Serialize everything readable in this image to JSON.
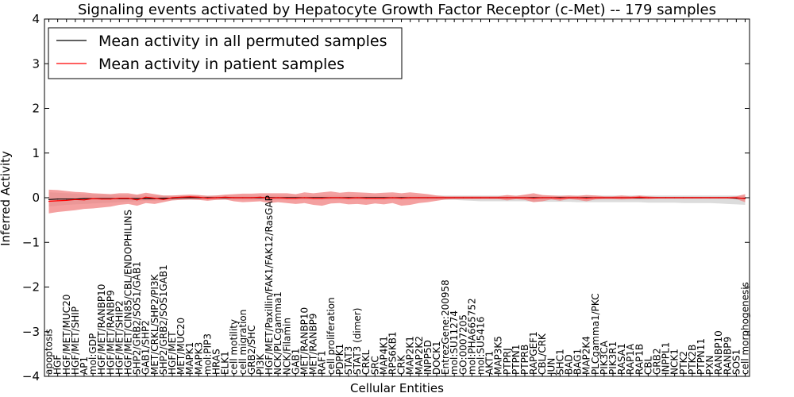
{
  "chart_data": {
    "type": "line",
    "title": "Signaling events activated by Hepatocyte Growth Factor Receptor (c-Met) -- 179 samples",
    "xlabel": "Cellular Entities",
    "ylabel": "Inferred Activity",
    "ylim": [
      -4,
      4
    ],
    "yticks": [
      -4,
      -3,
      -2,
      -1,
      0,
      1,
      2,
      3,
      4
    ],
    "ytick_labels": [
      "−4",
      "−3",
      "−2",
      "−1",
      "0",
      "1",
      "2",
      "3",
      "4"
    ],
    "legend_position": "top-left",
    "colors": {
      "permuted": "#000000",
      "patient": "#ff0000",
      "patient_band": "#f08080",
      "permuted_band": "#c0c0c0"
    },
    "categories": [
      "apoptosis",
      "HGF",
      "HGF/MET/MUC20",
      "HGF/MET/SHIP",
      "AP1",
      "mol:GDP",
      "HGF/MET/RANBP10",
      "HGF/MET/RANBP9",
      "HGF/MET/SHIP2",
      "HGF/MET/CIN85/CBL/ENDOPHILINS",
      "SHP2/GRB2/SOS1/GAB1",
      "GAB1/SHP2",
      "MET/CRKL/SHP2/PI3K",
      "SHP2/GRB2/SOS1GAB1",
      "HGF/MET",
      "MET/MUC20",
      "MAPK1",
      "MAPK3",
      "mol:PIP3",
      "HRAS",
      "ELK1",
      "cell motility",
      "cell migration",
      "GRB2/SHC",
      "PI3K",
      "HGF/MET/Paxillin/FAK1/FAK12/RasGAP",
      "NCK/PLCgamma1",
      "NCK/Filamin",
      "GAB1",
      "MET/RANBP10",
      "MET/RANBP9",
      "RAF1",
      "cell proliferation",
      "PDPK1",
      "STAT3",
      "STAT3 (dimer)",
      "CRKL",
      "SRC",
      "MAP4K1",
      "RPS6KB1",
      "CRK",
      "MAP2K1",
      "MAP2K2",
      "INPP5D",
      "DOCK1",
      "EntrezGene:200958",
      "mol:SU11274",
      "GO:0007205",
      "mol:PHA665752",
      "mol:SU5416",
      "AKT1",
      "MAP3K5",
      "PTPRJ",
      "PTPN1",
      "PTPRB",
      "RAPGEF1",
      "CBL/CRK",
      "JUN",
      "SHC1",
      "BAD",
      "BAG1",
      "MAP2K4",
      "PLCgamma1/PKC",
      "PIK3CA",
      "PIK3R1",
      "RASA1",
      "RAP1A",
      "RAP1B",
      "CBL",
      "GRB2",
      "INPPL1",
      "NCK1",
      "PTK2",
      "PTK2B",
      "PTPN11",
      "PXN",
      "RANBP10",
      "RANBP9",
      "SOS1",
      "cell morphogenesis"
    ],
    "series": [
      {
        "name": "Mean activity in all permuted samples",
        "values": [
          -0.04,
          -0.03,
          -0.03,
          -0.03,
          -0.02,
          -0.02,
          -0.02,
          -0.02,
          -0.02,
          -0.02,
          -0.02,
          -0.02,
          -0.02,
          -0.01,
          -0.01,
          0.0,
          0.0,
          0.0,
          0.0,
          0.0,
          0.0,
          0.0,
          0.0,
          0.0,
          0.0,
          0.0,
          0.0,
          0.0,
          0.0,
          0.0,
          0.0,
          0.0,
          0.0,
          0.0,
          0.0,
          0.0,
          0.0,
          0.0,
          0.0,
          0.0,
          0.0,
          0.0,
          0.0,
          0.0,
          0.0,
          0.0,
          0.0,
          0.0,
          0.0,
          0.0,
          0.0,
          0.0,
          0.0,
          0.0,
          0.0,
          0.0,
          0.0,
          0.0,
          0.0,
          0.0,
          0.0,
          0.0,
          0.0,
          0.0,
          0.0,
          0.0,
          0.0,
          0.0,
          0.0,
          0.0,
          0.0,
          0.0,
          0.0,
          0.0,
          0.0,
          0.0,
          0.0,
          0.0,
          -0.01,
          -0.01
        ],
        "lower": [
          -0.2,
          -0.18,
          -0.16,
          -0.15,
          -0.14,
          -0.13,
          -0.12,
          -0.11,
          -0.1,
          -0.09,
          -0.08,
          -0.07,
          -0.07,
          -0.06,
          -0.06,
          -0.05,
          -0.05,
          -0.05,
          -0.05,
          -0.05,
          -0.05,
          -0.05,
          -0.05,
          -0.05,
          -0.05,
          -0.05,
          -0.05,
          -0.05,
          -0.05,
          -0.05,
          -0.05,
          -0.05,
          -0.05,
          -0.05,
          -0.05,
          -0.05,
          -0.05,
          -0.05,
          -0.05,
          -0.05,
          -0.05,
          -0.05,
          -0.05,
          -0.05,
          -0.05,
          -0.05,
          -0.05,
          -0.06,
          -0.07,
          -0.08,
          -0.08,
          -0.08,
          -0.08,
          -0.08,
          -0.08,
          -0.09,
          -0.09,
          -0.09,
          -0.09,
          -0.09,
          -0.1,
          -0.1,
          -0.1,
          -0.1,
          -0.1,
          -0.1,
          -0.1,
          -0.1,
          -0.11,
          -0.11,
          -0.11,
          -0.11,
          -0.12,
          -0.12,
          -0.12,
          -0.12,
          -0.13,
          -0.14,
          -0.15,
          -0.16
        ],
        "upper": [
          0.12,
          0.11,
          0.1,
          0.09,
          0.08,
          0.08,
          0.07,
          0.07,
          0.06,
          0.06,
          0.06,
          0.05,
          0.05,
          0.05,
          0.05,
          0.05,
          0.05,
          0.05,
          0.05,
          0.05,
          0.05,
          0.05,
          0.05,
          0.05,
          0.05,
          0.05,
          0.05,
          0.05,
          0.05,
          0.05,
          0.05,
          0.05,
          0.05,
          0.05,
          0.05,
          0.05,
          0.05,
          0.05,
          0.05,
          0.05,
          0.05,
          0.05,
          0.05,
          0.05,
          0.05,
          0.05,
          0.05,
          0.05,
          0.05,
          0.05,
          0.05,
          0.05,
          0.05,
          0.05,
          0.05,
          0.05,
          0.05,
          0.05,
          0.05,
          0.05,
          0.05,
          0.05,
          0.05,
          0.05,
          0.05,
          0.05,
          0.05,
          0.05,
          0.05,
          0.05,
          0.05,
          0.05,
          0.05,
          0.05,
          0.05,
          0.05,
          0.05,
          0.05,
          0.05,
          0.05
        ]
      },
      {
        "name": "Mean activity in patient samples",
        "values": [
          -0.08,
          -0.07,
          -0.06,
          -0.04,
          -0.05,
          -0.02,
          -0.03,
          -0.03,
          -0.01,
          -0.01,
          -0.05,
          0.01,
          -0.01,
          -0.04,
          0.0,
          0.01,
          0.02,
          0.01,
          -0.01,
          0.0,
          0.01,
          0.0,
          0.0,
          0.0,
          0.01,
          -0.01,
          0.0,
          -0.01,
          -0.01,
          0.0,
          -0.01,
          -0.01,
          0.0,
          0.0,
          -0.01,
          0.0,
          -0.01,
          -0.01,
          -0.01,
          0.0,
          -0.01,
          0.0,
          0.0,
          0.0,
          0.0,
          0.0,
          0.0,
          0.0,
          0.0,
          0.0,
          0.0,
          0.0,
          0.0,
          0.0,
          0.0,
          -0.01,
          0.0,
          0.0,
          -0.01,
          0.0,
          0.0,
          -0.01,
          0.0,
          0.0,
          0.0,
          0.0,
          0.0,
          0.01,
          0.0,
          0.0,
          0.0,
          0.0,
          0.0,
          0.0,
          0.0,
          0.0,
          0.0,
          0.0,
          0.0,
          -0.02
        ],
        "lower": [
          -0.35,
          -0.32,
          -0.3,
          -0.28,
          -0.25,
          -0.24,
          -0.22,
          -0.2,
          -0.16,
          -0.14,
          -0.18,
          -0.12,
          -0.14,
          -0.1,
          -0.06,
          -0.05,
          -0.04,
          -0.05,
          -0.07,
          -0.05,
          -0.04,
          -0.08,
          -0.1,
          -0.09,
          -0.08,
          -0.12,
          -0.1,
          -0.12,
          -0.14,
          -0.12,
          -0.16,
          -0.18,
          -0.13,
          -0.12,
          -0.15,
          -0.14,
          -0.16,
          -0.13,
          -0.15,
          -0.12,
          -0.18,
          -0.16,
          -0.12,
          -0.1,
          -0.07,
          -0.04,
          -0.03,
          -0.03,
          -0.03,
          -0.03,
          -0.03,
          -0.03,
          -0.06,
          -0.03,
          -0.05,
          -0.1,
          -0.08,
          -0.04,
          -0.07,
          -0.03,
          -0.05,
          -0.08,
          -0.04,
          -0.03,
          -0.03,
          -0.04,
          -0.03,
          -0.03,
          -0.03,
          -0.02,
          -0.02,
          -0.02,
          -0.02,
          -0.02,
          -0.02,
          -0.02,
          -0.02,
          -0.02,
          -0.03,
          -0.1
        ],
        "upper": [
          0.18,
          0.17,
          0.15,
          0.13,
          0.12,
          0.1,
          0.09,
          0.08,
          0.1,
          0.1,
          0.07,
          0.11,
          0.08,
          0.05,
          0.05,
          0.06,
          0.07,
          0.06,
          0.04,
          0.05,
          0.07,
          0.08,
          0.09,
          0.09,
          0.1,
          0.1,
          0.1,
          0.1,
          0.08,
          0.12,
          0.1,
          0.12,
          0.14,
          0.11,
          0.13,
          0.12,
          0.11,
          0.1,
          0.11,
          0.12,
          0.1,
          0.12,
          0.1,
          0.08,
          0.05,
          0.03,
          0.03,
          0.03,
          0.03,
          0.03,
          0.03,
          0.03,
          0.06,
          0.04,
          0.07,
          0.1,
          0.06,
          0.05,
          0.04,
          0.05,
          0.04,
          0.06,
          0.05,
          0.03,
          0.03,
          0.05,
          0.03,
          0.05,
          0.03,
          0.02,
          0.02,
          0.02,
          0.02,
          0.02,
          0.02,
          0.02,
          0.02,
          0.02,
          0.03,
          0.08
        ]
      }
    ]
  }
}
